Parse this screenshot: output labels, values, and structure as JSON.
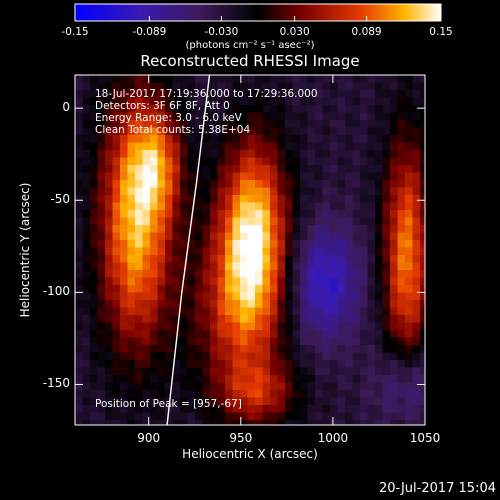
{
  "chart_data": {
    "type": "heatmap",
    "title": "Reconstructed RHESSI Image",
    "xlabel": "Heliocentric X (arcsec)",
    "ylabel": "Heliocentric Y (arcsec)",
    "xlim": [
      860,
      1050
    ],
    "ylim": [
      -172,
      18
    ],
    "xticks": [
      "900",
      "950",
      "1000",
      "1050"
    ],
    "yticks": [
      "0",
      "-50",
      "-100",
      "-150"
    ],
    "colorbar": {
      "ticks": [
        "-0.15",
        "-0.089",
        "-0.030",
        "0.030",
        "0.089",
        "0.15"
      ],
      "range": [
        -0.15,
        0.15
      ],
      "unit_label": "(photons cm⁻² s⁻¹ asec⁻²)"
    },
    "annotations": {
      "time_range": "18-Jul-2017 17:19:36.000 to 17:29:36.000",
      "detectors": "Detectors: 3F 6F 8F, Att 0",
      "energy": "Energy Range: 3.0 - 6.0 keV",
      "clean": "Clean     Total counts: 5.38E+04",
      "peak": "Position of Peak = [957,-67]"
    },
    "sources": [
      {
        "x": 893,
        "y": -62,
        "value": 0.14
      },
      {
        "x": 957,
        "y": -67,
        "value": 0.15
      },
      {
        "x": 1040,
        "y": -80,
        "value": 0.12
      }
    ],
    "limb": [
      [
        933,
        18
      ],
      [
        926,
        -40
      ],
      [
        918,
        -100
      ],
      [
        910,
        -172
      ]
    ]
  },
  "footer_date": "20-Jul-2017 15:04",
  "colors": {
    "background": "#000000",
    "negative": "#2200ff",
    "positive": "#ffff00"
  }
}
